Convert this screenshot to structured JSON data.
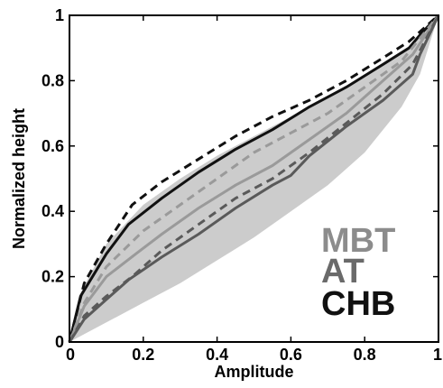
{
  "chart_data": {
    "type": "line",
    "xlabel": "Amplitude",
    "ylabel": "Normalized height",
    "xlim": [
      0,
      1
    ],
    "ylim": [
      0,
      1
    ],
    "xticks": [
      0,
      0.2,
      0.4,
      0.6,
      0.8,
      1
    ],
    "yticks": [
      0,
      0.2,
      0.4,
      0.6,
      0.8,
      1
    ],
    "xtick_labels": [
      "0",
      "0.2",
      "0.4",
      "0.6",
      "0.8",
      "1"
    ],
    "ytick_labels": [
      "0",
      "0.2",
      "0.4",
      "0.6",
      "0.8",
      "1"
    ],
    "grid": false,
    "legend_position": "bottom-right",
    "legend": [
      {
        "label": "MBT",
        "color": "#8c8c8c"
      },
      {
        "label": "AT",
        "color": "#6a6a6a"
      },
      {
        "label": "CHB",
        "color": "#111111"
      }
    ],
    "shaded_region": {
      "color": "#cccccc",
      "upper": [
        [
          0,
          0
        ],
        [
          0.03,
          0.15
        ],
        [
          0.1,
          0.3
        ],
        [
          0.2,
          0.42
        ],
        [
          0.3,
          0.5
        ],
        [
          0.4,
          0.57
        ],
        [
          0.5,
          0.63
        ],
        [
          0.6,
          0.69
        ],
        [
          0.7,
          0.75
        ],
        [
          0.8,
          0.81
        ],
        [
          0.9,
          0.88
        ],
        [
          1,
          1
        ]
      ],
      "lower": [
        [
          0,
          0
        ],
        [
          0.1,
          0.06
        ],
        [
          0.2,
          0.12
        ],
        [
          0.3,
          0.18
        ],
        [
          0.4,
          0.25
        ],
        [
          0.5,
          0.32
        ],
        [
          0.6,
          0.4
        ],
        [
          0.7,
          0.48
        ],
        [
          0.8,
          0.58
        ],
        [
          0.9,
          0.72
        ],
        [
          0.95,
          0.82
        ],
        [
          1,
          1
        ]
      ]
    },
    "series": [
      {
        "name": "CHB",
        "color": "#111111",
        "dashed": true,
        "width": 3,
        "points": [
          [
            0,
            0
          ],
          [
            0.04,
            0.18
          ],
          [
            0.1,
            0.3
          ],
          [
            0.17,
            0.42
          ],
          [
            0.25,
            0.49
          ],
          [
            0.35,
            0.56
          ],
          [
            0.45,
            0.63
          ],
          [
            0.55,
            0.69
          ],
          [
            0.65,
            0.74
          ],
          [
            0.75,
            0.8
          ],
          [
            0.85,
            0.87
          ],
          [
            0.92,
            0.92
          ],
          [
            1,
            1
          ]
        ]
      },
      {
        "name": "CHB",
        "color": "#111111",
        "dashed": false,
        "width": 3,
        "points": [
          [
            0,
            0
          ],
          [
            0.03,
            0.14
          ],
          [
            0.1,
            0.27
          ],
          [
            0.16,
            0.36
          ],
          [
            0.25,
            0.44
          ],
          [
            0.35,
            0.52
          ],
          [
            0.45,
            0.59
          ],
          [
            0.55,
            0.65
          ],
          [
            0.65,
            0.72
          ],
          [
            0.75,
            0.78
          ],
          [
            0.85,
            0.85
          ],
          [
            0.92,
            0.9
          ],
          [
            0.95,
            0.94
          ],
          [
            1,
            1
          ]
        ]
      },
      {
        "name": "MBT",
        "color": "#9a9a9a",
        "dashed": true,
        "width": 3,
        "points": [
          [
            0,
            0
          ],
          [
            0.04,
            0.12
          ],
          [
            0.1,
            0.23
          ],
          [
            0.2,
            0.34
          ],
          [
            0.3,
            0.42
          ],
          [
            0.4,
            0.5
          ],
          [
            0.5,
            0.58
          ],
          [
            0.6,
            0.64
          ],
          [
            0.7,
            0.7
          ],
          [
            0.8,
            0.78
          ],
          [
            0.9,
            0.86
          ],
          [
            1,
            1
          ]
        ]
      },
      {
        "name": "MBT",
        "color": "#9a9a9a",
        "dashed": false,
        "width": 3,
        "points": [
          [
            0,
            0
          ],
          [
            0.04,
            0.11
          ],
          [
            0.1,
            0.2
          ],
          [
            0.18,
            0.27
          ],
          [
            0.25,
            0.33
          ],
          [
            0.35,
            0.41
          ],
          [
            0.45,
            0.48
          ],
          [
            0.55,
            0.54
          ],
          [
            0.65,
            0.62
          ],
          [
            0.75,
            0.7
          ],
          [
            0.85,
            0.8
          ],
          [
            0.93,
            0.88
          ],
          [
            1,
            1
          ]
        ]
      },
      {
        "name": "AT",
        "color": "#5a5a5a",
        "dashed": true,
        "width": 3,
        "points": [
          [
            0,
            0
          ],
          [
            0.04,
            0.08
          ],
          [
            0.1,
            0.14
          ],
          [
            0.17,
            0.2
          ],
          [
            0.25,
            0.28
          ],
          [
            0.35,
            0.36
          ],
          [
            0.45,
            0.44
          ],
          [
            0.55,
            0.5
          ],
          [
            0.65,
            0.58
          ],
          [
            0.75,
            0.67
          ],
          [
            0.85,
            0.76
          ],
          [
            0.93,
            0.85
          ],
          [
            1,
            1
          ]
        ]
      },
      {
        "name": "AT",
        "color": "#5a5a5a",
        "dashed": false,
        "width": 3,
        "points": [
          [
            0,
            0
          ],
          [
            0.04,
            0.07
          ],
          [
            0.1,
            0.13
          ],
          [
            0.16,
            0.19
          ],
          [
            0.25,
            0.26
          ],
          [
            0.35,
            0.33
          ],
          [
            0.45,
            0.41
          ],
          [
            0.55,
            0.48
          ],
          [
            0.6,
            0.51
          ],
          [
            0.65,
            0.57
          ],
          [
            0.75,
            0.66
          ],
          [
            0.85,
            0.74
          ],
          [
            0.93,
            0.82
          ],
          [
            0.95,
            0.88
          ],
          [
            1,
            1
          ]
        ]
      }
    ]
  }
}
